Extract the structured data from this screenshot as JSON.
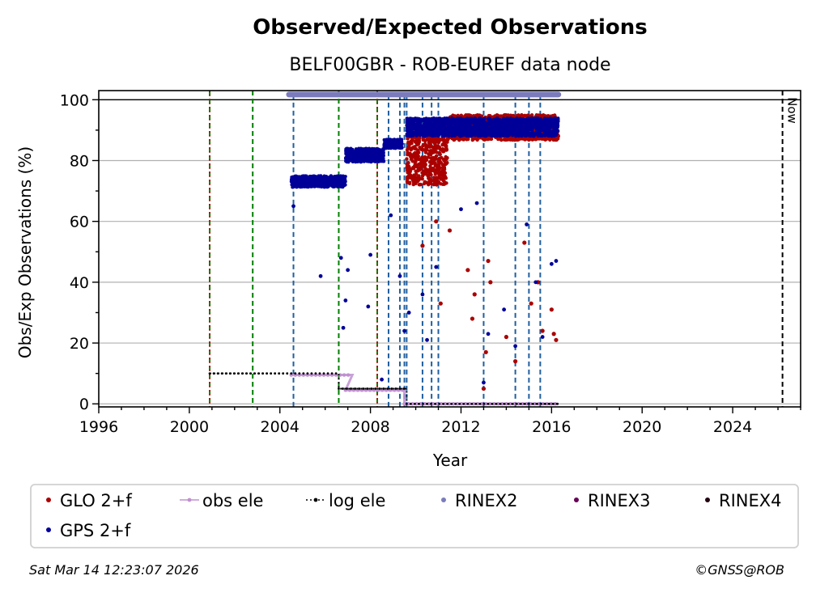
{
  "chart_data": {
    "type": "scatter",
    "title": "Observed/Expected Observations",
    "subtitle": "BELF00GBR - ROB-EUREF data node",
    "xlabel": "Year",
    "ylabel": "Obs/Exp Observations (%)",
    "xlim": [
      1996,
      2027
    ],
    "ylim": [
      -1,
      103
    ],
    "x_ticks": [
      1996,
      2000,
      2004,
      2008,
      2012,
      2016,
      2020,
      2024
    ],
    "y_ticks": [
      0,
      20,
      40,
      60,
      80,
      100
    ],
    "grid": "horizontal",
    "now_label": "Now",
    "now_year": 2026.2,
    "reference_line_100": 100,
    "colors": {
      "glo": "#aa0000",
      "gps": "#000099",
      "obs_ele": "#c090d0",
      "log_ele": "#000000",
      "rinex2": "#7b7bbb",
      "rinex3": "#660055",
      "rinex4": "#220011",
      "green_event": "#008000",
      "blue_event": "#1f5fa0",
      "red_event": "#cc0000",
      "now_line": "#000000",
      "grid": "#b0b0b0"
    },
    "series": [
      {
        "name": "GLO 2+f",
        "type": "scatter",
        "color": "#aa0000",
        "segments": [
          {
            "x_start": 2009.6,
            "x_end": 2011.4,
            "y_min": 66,
            "y_max": 90
          },
          {
            "x_start": 2011.4,
            "x_end": 2016.3,
            "y_min": 84,
            "y_max": 95
          }
        ],
        "outliers": [
          [
            2010.3,
            52
          ],
          [
            2010.9,
            60
          ],
          [
            2011.1,
            33
          ],
          [
            2011.5,
            57
          ],
          [
            2012.3,
            44
          ],
          [
            2012.5,
            28
          ],
          [
            2012.6,
            36
          ],
          [
            2013.0,
            5
          ],
          [
            2013.1,
            17
          ],
          [
            2013.2,
            47
          ],
          [
            2013.3,
            40
          ],
          [
            2014.0,
            22
          ],
          [
            2014.4,
            14
          ],
          [
            2014.8,
            53
          ],
          [
            2015.1,
            33
          ],
          [
            2015.4,
            40
          ],
          [
            2015.6,
            24
          ],
          [
            2016.0,
            31
          ],
          [
            2016.1,
            23
          ],
          [
            2016.2,
            21
          ]
        ]
      },
      {
        "name": "GPS 2+f",
        "type": "scatter",
        "color": "#000099",
        "segments": [
          {
            "x_start": 2004.5,
            "x_end": 2006.9,
            "y_min": 70,
            "y_max": 75
          },
          {
            "x_start": 2006.9,
            "x_end": 2008.6,
            "y_min": 78,
            "y_max": 84
          },
          {
            "x_start": 2008.6,
            "x_end": 2009.4,
            "y_min": 83,
            "y_max": 87
          },
          {
            "x_start": 2009.6,
            "x_end": 2016.3,
            "y_min": 86,
            "y_max": 94
          }
        ],
        "outliers": [
          [
            2004.6,
            65
          ],
          [
            2005.8,
            42
          ],
          [
            2006.7,
            48
          ],
          [
            2006.8,
            25
          ],
          [
            2006.9,
            34
          ],
          [
            2007.0,
            44
          ],
          [
            2007.9,
            32
          ],
          [
            2008.0,
            49
          ],
          [
            2008.5,
            8
          ],
          [
            2008.9,
            62
          ],
          [
            2009.3,
            42
          ],
          [
            2009.5,
            24
          ],
          [
            2009.7,
            30
          ],
          [
            2010.3,
            36
          ],
          [
            2010.5,
            21
          ],
          [
            2010.9,
            45
          ],
          [
            2012.0,
            64
          ],
          [
            2012.7,
            66
          ],
          [
            2013.0,
            7
          ],
          [
            2013.2,
            23
          ],
          [
            2013.9,
            31
          ],
          [
            2014.4,
            19
          ],
          [
            2014.9,
            59
          ],
          [
            2015.3,
            40
          ],
          [
            2015.6,
            22
          ],
          [
            2016.0,
            46
          ],
          [
            2016.2,
            47
          ]
        ]
      },
      {
        "name": "obs ele",
        "type": "line",
        "color": "#c090d0",
        "points": [
          [
            2004.5,
            9.5
          ],
          [
            2007.2,
            9.5
          ],
          [
            2006.9,
            4.5
          ],
          [
            2009.5,
            4.5
          ],
          [
            2009.5,
            0
          ],
          [
            2016.3,
            0
          ]
        ]
      },
      {
        "name": "log ele",
        "type": "line",
        "color": "#000000",
        "points": [
          [
            2000.9,
            10
          ],
          [
            2006.6,
            10
          ],
          [
            2006.6,
            5
          ],
          [
            2009.6,
            5
          ],
          [
            2009.6,
            0
          ],
          [
            2016.3,
            0
          ]
        ]
      },
      {
        "name": "RINEX2",
        "type": "band",
        "color": "#7b7bbb",
        "x_start": 2004.4,
        "x_end": 2016.3,
        "y": 101.7
      },
      {
        "name": "RINEX3",
        "type": "band",
        "color": "#660055"
      },
      {
        "name": "RINEX4",
        "type": "band",
        "color": "#220011"
      }
    ],
    "event_lines": {
      "green": [
        2000.9,
        2002.8,
        2006.6,
        2008.3
      ],
      "red": [
        2000.9,
        2008.3
      ],
      "blue": [
        2004.6,
        2008.8,
        2009.3,
        2009.5,
        2009.6,
        2010.3,
        2010.7,
        2011.0,
        2013.0,
        2014.4,
        2015.0,
        2015.5
      ],
      "now": [
        2026.2
      ]
    },
    "legend": {
      "position": "below",
      "entries": [
        "GLO 2+f",
        "obs ele",
        "log ele",
        "RINEX2",
        "RINEX3",
        "RINEX4",
        "GPS 2+f"
      ]
    }
  },
  "footer": {
    "timestamp": "Sat Mar 14 12:23:07 2026",
    "credit": "©GNSS@ROB"
  }
}
